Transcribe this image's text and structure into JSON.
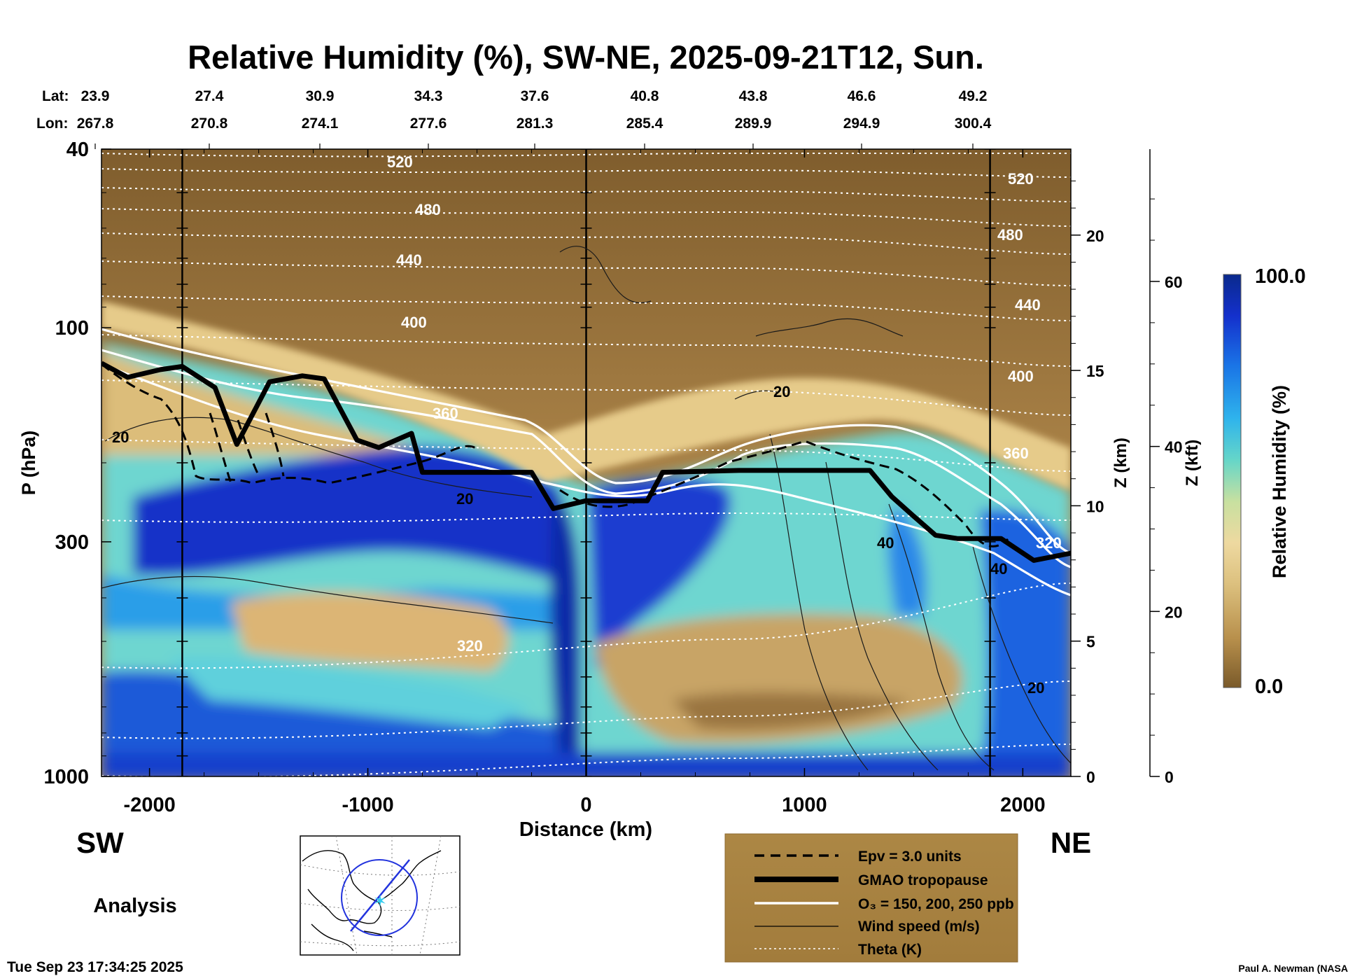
{
  "chart_data": {
    "type": "heatmap",
    "title": "Relative Humidity (%), SW-NE, 2025-09-21T12, Sun.",
    "xlabel": "Distance (km)",
    "ylabel": "P (hPa)",
    "xlim": [
      -2220,
      2220
    ],
    "ylim": [
      1000,
      40
    ],
    "x_ticks": [
      -2000,
      -1000,
      0,
      1000,
      2000
    ],
    "y_ticks": [
      40,
      100,
      300,
      1000
    ],
    "z_km_axis": {
      "label": "Z (km)",
      "ticks": [
        0,
        5,
        10,
        15,
        20
      ]
    },
    "z_kft_axis": {
      "label": "Z (kft)",
      "ticks": [
        0,
        20,
        40,
        60
      ]
    },
    "lat_label": "Lat:",
    "lon_label": "Lon:",
    "lat": [
      "23.9",
      "27.4",
      "30.9",
      "34.3",
      "37.6",
      "40.8",
      "43.8",
      "46.6",
      "49.2"
    ],
    "lon": [
      "267.8",
      "270.8",
      "274.1",
      "277.6",
      "281.3",
      "285.4",
      "289.9",
      "294.9",
      "300.4"
    ],
    "side_labels": {
      "left": "SW",
      "right": "NE"
    },
    "vertical_marker_km": [
      -1850,
      0,
      1850
    ],
    "colorbar": {
      "label": "Relative Humidity (%)",
      "max_label": "100.0",
      "min_label": "0.0",
      "colors": [
        "#7a5a2a",
        "#b8904c",
        "#dcc07e",
        "#eed9a0",
        "#c8e0a0",
        "#66d6c8",
        "#2fb4ec",
        "#1a74e6",
        "#1430cc",
        "#0a2a8c"
      ]
    },
    "theta_labels": [
      "520",
      "480",
      "440",
      "400",
      "360",
      "320",
      "520",
      "480",
      "440",
      "400",
      "360",
      "320"
    ],
    "wind_labels": [
      "20",
      "20",
      "20",
      "40",
      "40",
      "20"
    ],
    "tropopause_hpa": [
      [
        -2220,
        120
      ],
      [
        -2100,
        129
      ],
      [
        -1950,
        124
      ],
      [
        -1850,
        122
      ],
      [
        -1700,
        136
      ],
      [
        -1600,
        182
      ],
      [
        -1450,
        132
      ],
      [
        -1300,
        128
      ],
      [
        -1200,
        130
      ],
      [
        -1050,
        178
      ],
      [
        -950,
        185
      ],
      [
        -800,
        172
      ],
      [
        -750,
        210
      ],
      [
        -600,
        210
      ],
      [
        -400,
        210
      ],
      [
        -250,
        210
      ],
      [
        -150,
        253
      ],
      [
        0,
        243
      ],
      [
        280,
        243
      ],
      [
        350,
        210
      ],
      [
        700,
        208
      ],
      [
        1000,
        208
      ],
      [
        1300,
        208
      ],
      [
        1400,
        238
      ],
      [
        1500,
        263
      ],
      [
        1600,
        290
      ],
      [
        1700,
        295
      ],
      [
        1900,
        295
      ],
      [
        2050,
        330
      ],
      [
        2220,
        318
      ]
    ],
    "legend": [
      "Epv = 3.0 units",
      "GMAO tropopause",
      "O₃ = 150, 200, 250 ppb",
      "Wind speed (m/s)",
      "Theta (K)"
    ]
  },
  "footer": {
    "analysis": "Analysis",
    "timestamp": "Tue Sep 23 17:34:25 2025",
    "credit": "Paul A. Newman (NASA"
  }
}
